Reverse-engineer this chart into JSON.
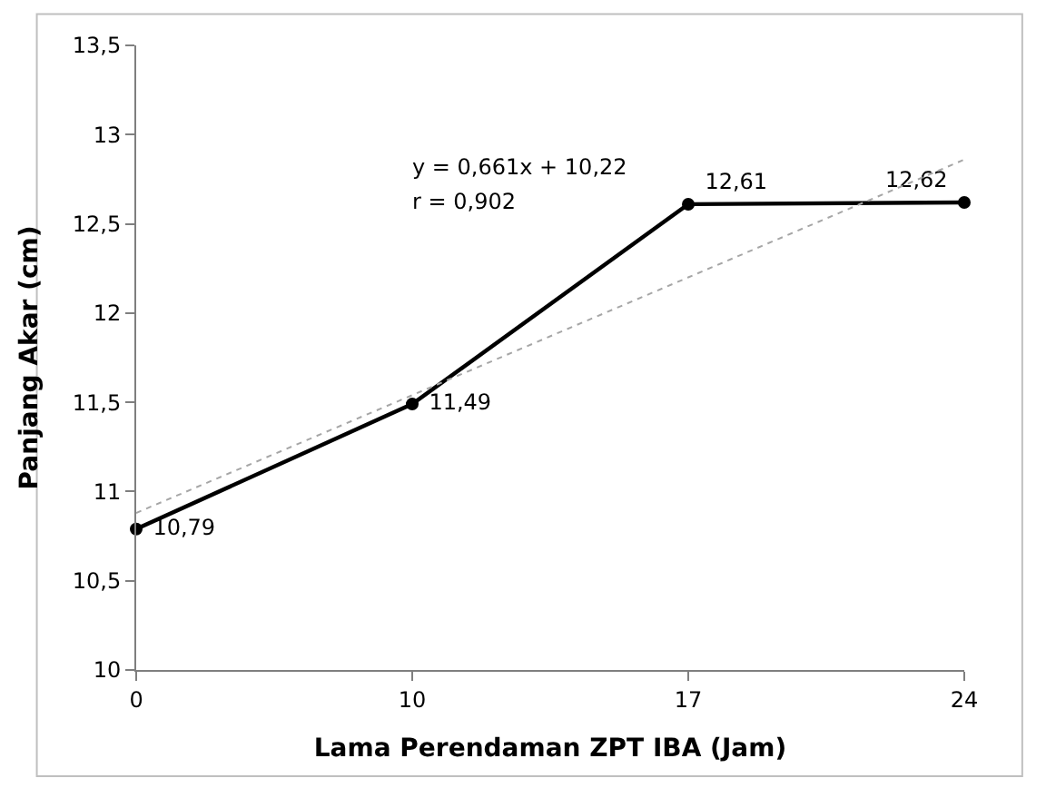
{
  "chart_data": {
    "type": "line",
    "xlabel": "Lama Perendaman ZPT IBA (Jam)",
    "ylabel": "Panjang Akar (cm)",
    "categories": [
      "0",
      "10",
      "17",
      "24"
    ],
    "series": [
      {
        "color": "#000000",
        "values": [
          10.79,
          11.49,
          12.61,
          12.62
        ],
        "value_labels": [
          "10,79",
          "11,49",
          "12,61",
          "12,62"
        ],
        "marker": "circle",
        "line_style": "solid"
      },
      {
        "type": "line",
        "color": "#a6a6a6",
        "values": [
          10.88,
          11.54,
          12.2,
          12.86
        ],
        "marker": "none",
        "line_style": "dotted"
      }
    ],
    "ylim": [
      10,
      13.5
    ],
    "yticks": [
      10,
      {
        "value": 10.5,
        "label": "10,5"
      },
      11,
      {
        "value": 11.5,
        "label": "11,5"
      },
      12,
      {
        "value": 12.5,
        "label": "12,5"
      },
      13,
      {
        "value": 13.5,
        "label": "13,5"
      }
    ],
    "annotations": [
      "y = 0,661x + 10,22",
      "r = 0,902"
    ]
  }
}
